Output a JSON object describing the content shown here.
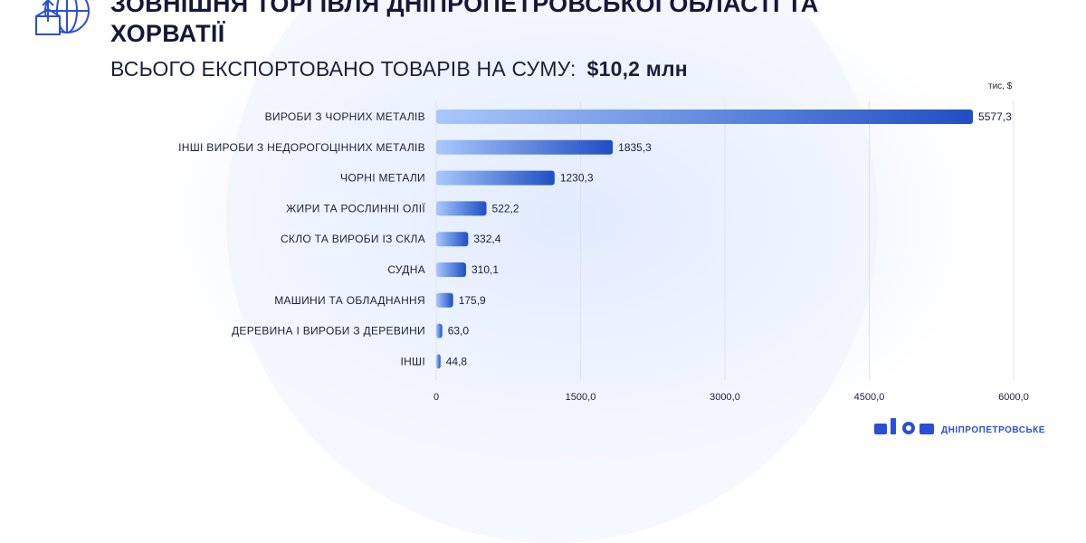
{
  "header": {
    "title": "ЗОВНІШНЯ ТОРГІВЛЯ ДНІПРОПЕТРОВСЬКОЇ ОБЛАСТІ ТА\nХОРВАТІЇ",
    "subtitle_prefix": "ВСЬОГО ЕКСПОРТОВАНО ТОВАРІВ НА СУМУ:",
    "subtitle_sum": "$10,2 млн",
    "logo_icon": "globe-box-upload-icon"
  },
  "brand": {
    "text": "ДНІПРОПЕТРОВСЬКЕ",
    "logo_icon": "dnipro-brand-icon"
  },
  "colors": {
    "bar_light": "#a9c8fb",
    "bar_dark": "#1f4fc4",
    "grid": "#dfe3ec",
    "text": "#1c1f3a"
  },
  "chart_data": {
    "type": "bar",
    "orientation": "horizontal",
    "unit_label": "тис, $",
    "categories": [
      "ВИРОБИ З ЧОРНИХ МЕТАЛІВ",
      "ІНШІ ВИРОБИ З НЕДОРОГОЦІННИХ МЕТАЛІВ",
      "ЧОРНІ МЕТАЛИ",
      "ЖИРИ ТА РОСЛИННІ ОЛІЇ",
      "СКЛО ТА ВИРОБИ ІЗ СКЛА",
      "СУДНА",
      "МАШИНИ ТА ОБЛАДНАННЯ",
      "ДЕРЕВИНА І ВИРОБИ З ДЕРЕВИНИ",
      "ІНШІ"
    ],
    "values": [
      5577.3,
      1835.3,
      1230.3,
      522.2,
      332.4,
      310.1,
      175.9,
      63.0,
      44.8
    ],
    "value_labels": [
      "5577,3",
      "1835,3",
      "1230,3",
      "522,2",
      "332,4",
      "310,1",
      "175,9",
      "63,0",
      "44,8"
    ],
    "xlim": [
      0,
      6000
    ],
    "ticks": [
      0,
      1500,
      3000,
      4500,
      6000
    ],
    "tick_labels": [
      "0",
      "1500,0",
      "3000,0",
      "4500,0",
      "6000,0"
    ],
    "grid": true
  }
}
